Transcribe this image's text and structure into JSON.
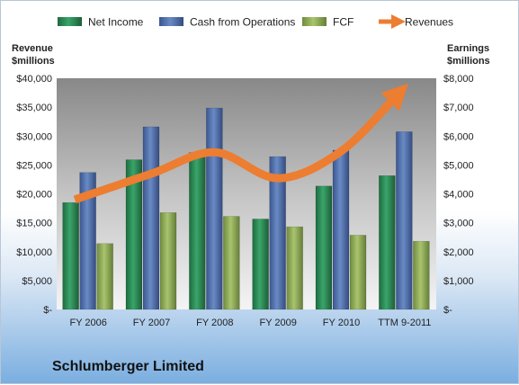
{
  "company": "Schlumberger Limited",
  "chart_data": {
    "type": "bar",
    "categories": [
      "FY 2006",
      "FY 2007",
      "FY 2008",
      "FY 2009",
      "FY 2010",
      "TTM 9-2011"
    ],
    "series": [
      {
        "name": "Net Income",
        "axis": "right",
        "color": "#2e8b57",
        "values": [
          3700,
          5180,
          5430,
          3130,
          4270,
          4630
        ]
      },
      {
        "name": "Cash from Operations",
        "axis": "right",
        "color": "#4f6fa8",
        "values": [
          4740,
          6320,
          6970,
          5290,
          5510,
          6150
        ]
      },
      {
        "name": "FCF",
        "axis": "right",
        "color": "#8fac58",
        "values": [
          2280,
          3350,
          3220,
          2860,
          2570,
          2360
        ]
      },
      {
        "name": "Revenues",
        "type": "line",
        "axis": "left",
        "color": "#ed7d31",
        "values": [
          19000,
          23500,
          27200,
          22700,
          27400,
          37500
        ]
      }
    ],
    "left_axis": {
      "title_line1": "Revenue",
      "title_line2": "$millions",
      "ylim": [
        0,
        40000
      ],
      "ticks": [
        "$-",
        "$5,000",
        "$10,000",
        "$15,000",
        "$20,000",
        "$25,000",
        "$30,000",
        "$35,000",
        "$40,000"
      ]
    },
    "right_axis": {
      "title_line1": "Earnings",
      "title_line2": "$millions",
      "ylim": [
        0,
        8000
      ],
      "ticks": [
        "$-",
        "$1,000",
        "$2,000",
        "$3,000",
        "$4,000",
        "$5,000",
        "$6,000",
        "$7,000",
        "$8,000"
      ]
    },
    "legend": [
      "Net Income",
      "Cash from Operations",
      "FCF",
      "Revenues"
    ],
    "legend_position": "top",
    "grid": false
  }
}
